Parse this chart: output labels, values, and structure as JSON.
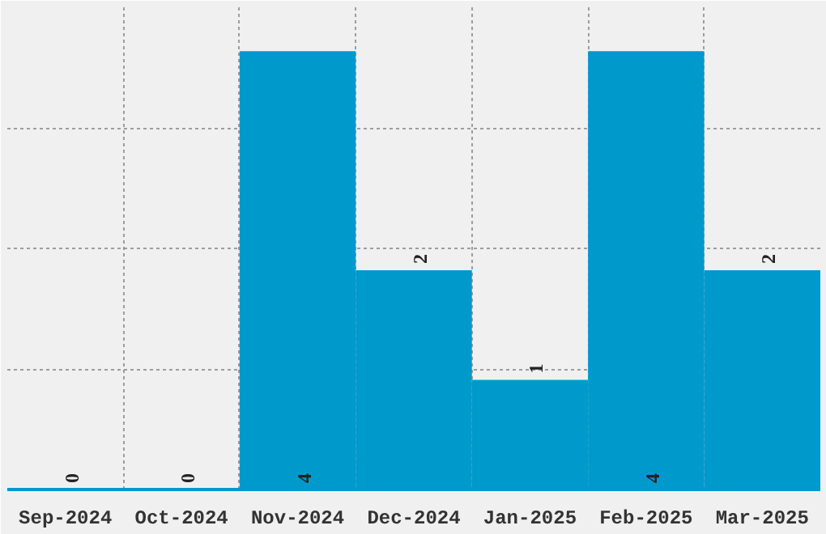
{
  "chart_data": {
    "type": "bar",
    "categories": [
      "Sep-2024",
      "Oct-2024",
      "Nov-2024",
      "Dec-2024",
      "Jan-2025",
      "Feb-2025",
      "Mar-2025"
    ],
    "values": [
      0,
      0,
      4,
      2,
      1,
      4,
      2
    ],
    "color": "#0099cc",
    "ylim": [
      0,
      4.4
    ],
    "yticks": [
      {
        "value": 1.1,
        "label": null
      },
      {
        "value": 2.2,
        "label": null
      },
      {
        "value": 3.3,
        "label": null
      }
    ],
    "tick_labels": "x",
    "grid": true,
    "data_labels": true
  }
}
